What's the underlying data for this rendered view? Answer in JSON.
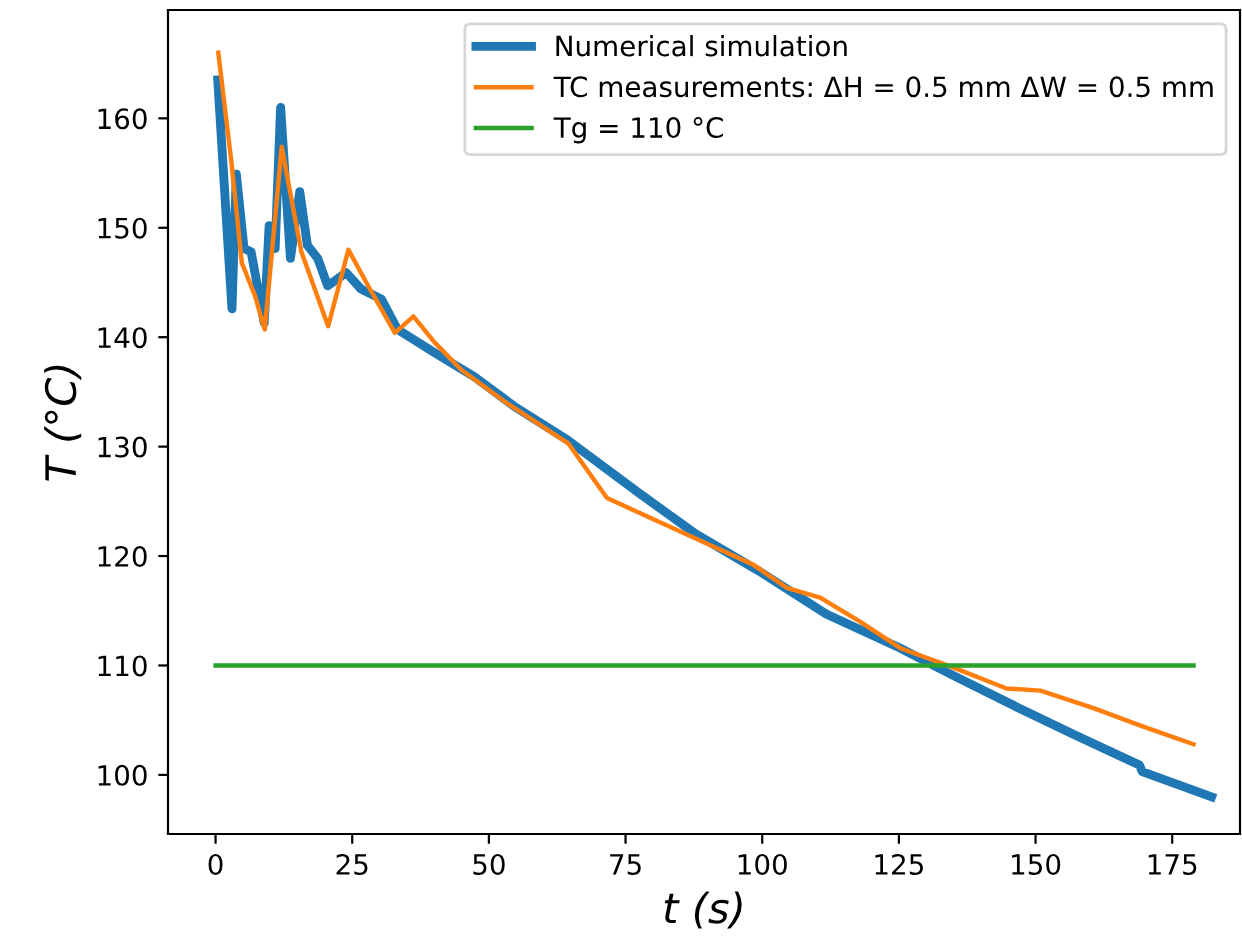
{
  "chart_data": {
    "type": "line",
    "xlabel": "t (s)",
    "ylabel": "T (°C)",
    "xlim": [
      -8.7,
      187.4
    ],
    "ylim": [
      94.6,
      169.9
    ],
    "xticks": [
      0,
      25,
      50,
      75,
      100,
      125,
      150,
      175
    ],
    "yticks": [
      100,
      110,
      120,
      130,
      140,
      150,
      160
    ],
    "grid": false,
    "legend": "top right",
    "marker": "none",
    "line_style": "solid",
    "series": [
      {
        "name": "Numerical simulation",
        "color": "#1f77b4",
        "x": [
          0.4,
          3.0,
          3.8,
          5.2,
          6.5,
          8.9,
          9.8,
          10.9,
          11.9,
          13.7,
          15.4,
          16.8,
          18.7,
          20.5,
          23.9,
          26.6,
          30.3,
          33.3,
          40,
          47.3,
          54.6,
          64.4,
          77.6,
          87.9,
          99.5,
          111.7,
          125.2,
          134.9,
          147,
          157.4,
          169,
          169.5,
          182.2
        ],
        "values": [
          163.5,
          142.6,
          154.9,
          148.1,
          147.8,
          141.3,
          150.2,
          148.1,
          161,
          147.2,
          153.3,
          148.4,
          147.2,
          144.7,
          145.9,
          144.4,
          143.5,
          140.7,
          138.6,
          136.4,
          133.7,
          130.6,
          125.7,
          122,
          118.6,
          114.7,
          111.6,
          109.1,
          106.1,
          103.6,
          100.9,
          100.3,
          98
        ]
      },
      {
        "name": "TC measurements: ΔH = 0.5 mm ΔW = 0.5 mm",
        "color": "#ff7f0e",
        "x": [
          0.5,
          2.9,
          4.8,
          7.2,
          9.0,
          12.1,
          15.7,
          20.6,
          24.3,
          27.9,
          32.8,
          36.2,
          40.1,
          45,
          53.5,
          64.5,
          71.6,
          87.4,
          98.4,
          104.5,
          110.6,
          117.9,
          125.2,
          135,
          144.7,
          150.9,
          160.6,
          169.2,
          178.9
        ],
        "values": [
          166,
          156,
          146.8,
          143.8,
          140.7,
          157.4,
          147.8,
          141,
          148,
          144.7,
          140.4,
          141.9,
          139.5,
          137,
          133.9,
          130.3,
          125.3,
          121.7,
          119.2,
          117.1,
          116.2,
          114,
          111.6,
          109.8,
          107.9,
          107.7,
          106.1,
          104.5,
          102.8
        ]
      },
      {
        "name": "Tg = 110 °C",
        "color": "#2ca02c",
        "x": [
          0,
          178.9
        ],
        "values": [
          110,
          110
        ]
      }
    ]
  }
}
